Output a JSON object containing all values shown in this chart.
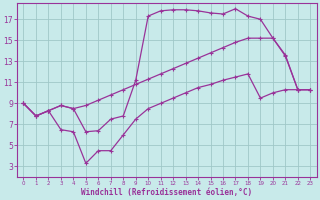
{
  "background_color": "#c8eaea",
  "grid_color": "#a0c8c8",
  "line_color": "#993399",
  "xlabel": "Windchill (Refroidissement éolien,°C)",
  "xlim": [
    -0.5,
    23.5
  ],
  "ylim": [
    2.0,
    18.5
  ],
  "yticks": [
    3,
    5,
    7,
    9,
    11,
    13,
    15,
    17
  ],
  "xticks": [
    0,
    1,
    2,
    3,
    4,
    5,
    6,
    7,
    8,
    9,
    10,
    11,
    12,
    13,
    14,
    15,
    16,
    17,
    18,
    19,
    20,
    21,
    22,
    23
  ],
  "series1_x": [
    0,
    1,
    2,
    3,
    4,
    5,
    6,
    7,
    8,
    9,
    10,
    11,
    12,
    13,
    14,
    15,
    16,
    17,
    18,
    19,
    20,
    21,
    22,
    23
  ],
  "series1_y": [
    9.0,
    7.8,
    8.3,
    8.8,
    8.5,
    6.3,
    6.4,
    7.5,
    7.8,
    11.2,
    17.3,
    17.8,
    17.9,
    17.9,
    17.8,
    17.6,
    17.5,
    18.0,
    17.3,
    17.0,
    15.2,
    13.5,
    10.3,
    10.3
  ],
  "series2_x": [
    0,
    1,
    2,
    3,
    4,
    5,
    6,
    7,
    8,
    9,
    10,
    11,
    12,
    13,
    14,
    15,
    16,
    17,
    18,
    19,
    20,
    21,
    22,
    23
  ],
  "series2_y": [
    9.0,
    7.8,
    8.3,
    8.8,
    8.5,
    8.8,
    9.3,
    9.8,
    10.3,
    10.8,
    11.3,
    11.8,
    12.3,
    12.8,
    13.3,
    13.8,
    14.3,
    14.8,
    15.2,
    15.2,
    15.2,
    13.6,
    10.3,
    10.3
  ],
  "series3_x": [
    0,
    1,
    2,
    3,
    4,
    5,
    6,
    7,
    8,
    9,
    10,
    11,
    12,
    13,
    14,
    15,
    16,
    17,
    18,
    19,
    20,
    21,
    22,
    23
  ],
  "series3_y": [
    9.0,
    7.8,
    8.3,
    6.5,
    6.3,
    3.3,
    4.5,
    4.5,
    6.0,
    7.5,
    8.5,
    9.0,
    9.5,
    10.0,
    10.5,
    10.8,
    11.2,
    11.5,
    11.8,
    9.5,
    10.0,
    10.3,
    10.3,
    10.3
  ]
}
